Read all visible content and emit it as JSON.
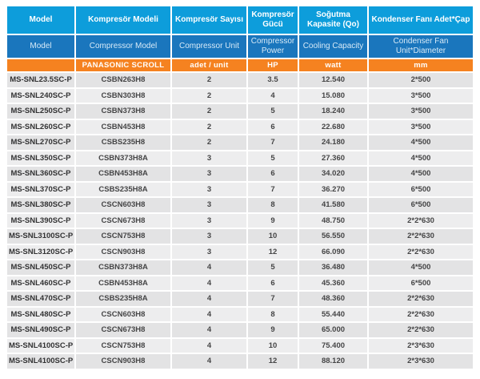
{
  "colors": {
    "header_top_bg": "#0d9ddb",
    "header_sub_bg": "#1a76bd",
    "unit_row_bg": "#f58220",
    "row_odd_bg": "#e3e3e4",
    "row_even_bg": "#ededee"
  },
  "table": {
    "header_row1": {
      "cells": [
        "Model",
        "Kompresör Modeli",
        "Kompresör Sayısı",
        "Kompresör Gücü",
        "Soğutma Kapasite (Qo)",
        "Kondenser Fanı Adet*Çap"
      ]
    },
    "header_row2": {
      "cells": [
        "Model",
        "Compressor Model",
        "Compressor Unit",
        "Compressor Power",
        "Cooling Capacity",
        "Condenser Fan Unit*Diameter"
      ]
    },
    "unit_row": {
      "cells": [
        "",
        "PANASONIC SCROLL",
        "adet / unit",
        "HP",
        "watt",
        "mm"
      ]
    },
    "rows": [
      [
        "MS-SNL23.5SC-P",
        "CSBN263H8",
        "2",
        "3.5",
        "12.540",
        "2*500"
      ],
      [
        "MS-SNL240SC-P",
        "CSBN303H8",
        "2",
        "4",
        "15.080",
        "3*500"
      ],
      [
        "MS-SNL250SC-P",
        "CSBN373H8",
        "2",
        "5",
        "18.240",
        "3*500"
      ],
      [
        "MS-SNL260SC-P",
        "CSBN453H8",
        "2",
        "6",
        "22.680",
        "3*500"
      ],
      [
        "MS-SNL270SC-P",
        "CSBS235H8",
        "2",
        "7",
        "24.180",
        "4*500"
      ],
      [
        "MS-SNL350SC-P",
        "CSBN373H8A",
        "3",
        "5",
        "27.360",
        "4*500"
      ],
      [
        "MS-SNL360SC-P",
        "CSBN453H8A",
        "3",
        "6",
        "34.020",
        "4*500"
      ],
      [
        "MS-SNL370SC-P",
        "CSBS235H8A",
        "3",
        "7",
        "36.270",
        "6*500"
      ],
      [
        "MS-SNL380SC-P",
        "CSCN603H8",
        "3",
        "8",
        "41.580",
        "6*500"
      ],
      [
        "MS-SNL390SC-P",
        "CSCN673H8",
        "3",
        "9",
        "48.750",
        "2*2*630"
      ],
      [
        "MS-SNL3100SC-P",
        "CSCN753H8",
        "3",
        "10",
        "56.550",
        "2*2*630"
      ],
      [
        "MS-SNL3120SC-P",
        "CSCN903H8",
        "3",
        "12",
        "66.090",
        "2*2*630"
      ],
      [
        "MS-SNL450SC-P",
        "CSBN373H8A",
        "4",
        "5",
        "36.480",
        "4*500"
      ],
      [
        "MS-SNL460SC-P",
        "CSBN453H8A",
        "4",
        "6",
        "45.360",
        "6*500"
      ],
      [
        "MS-SNL470SC-P",
        "CSBS235H8A",
        "4",
        "7",
        "48.360",
        "2*2*630"
      ],
      [
        "MS-SNL480SC-P",
        "CSCN603H8",
        "4",
        "8",
        "55.440",
        "2*2*630"
      ],
      [
        "MS-SNL490SC-P",
        "CSCN673H8",
        "4",
        "9",
        "65.000",
        "2*2*630"
      ],
      [
        "MS-SNL4100SC-P",
        "CSCN753H8",
        "4",
        "10",
        "75.400",
        "2*3*630"
      ],
      [
        "MS-SNL4100SC-P",
        "CSCN903H8",
        "4",
        "12",
        "88.120",
        "2*3*630"
      ]
    ],
    "column_names": [
      "model-cell",
      "compressor-model-cell",
      "compressor-unit-cell",
      "compressor-power-cell",
      "cooling-capacity-cell",
      "condenser-fan-cell"
    ]
  }
}
